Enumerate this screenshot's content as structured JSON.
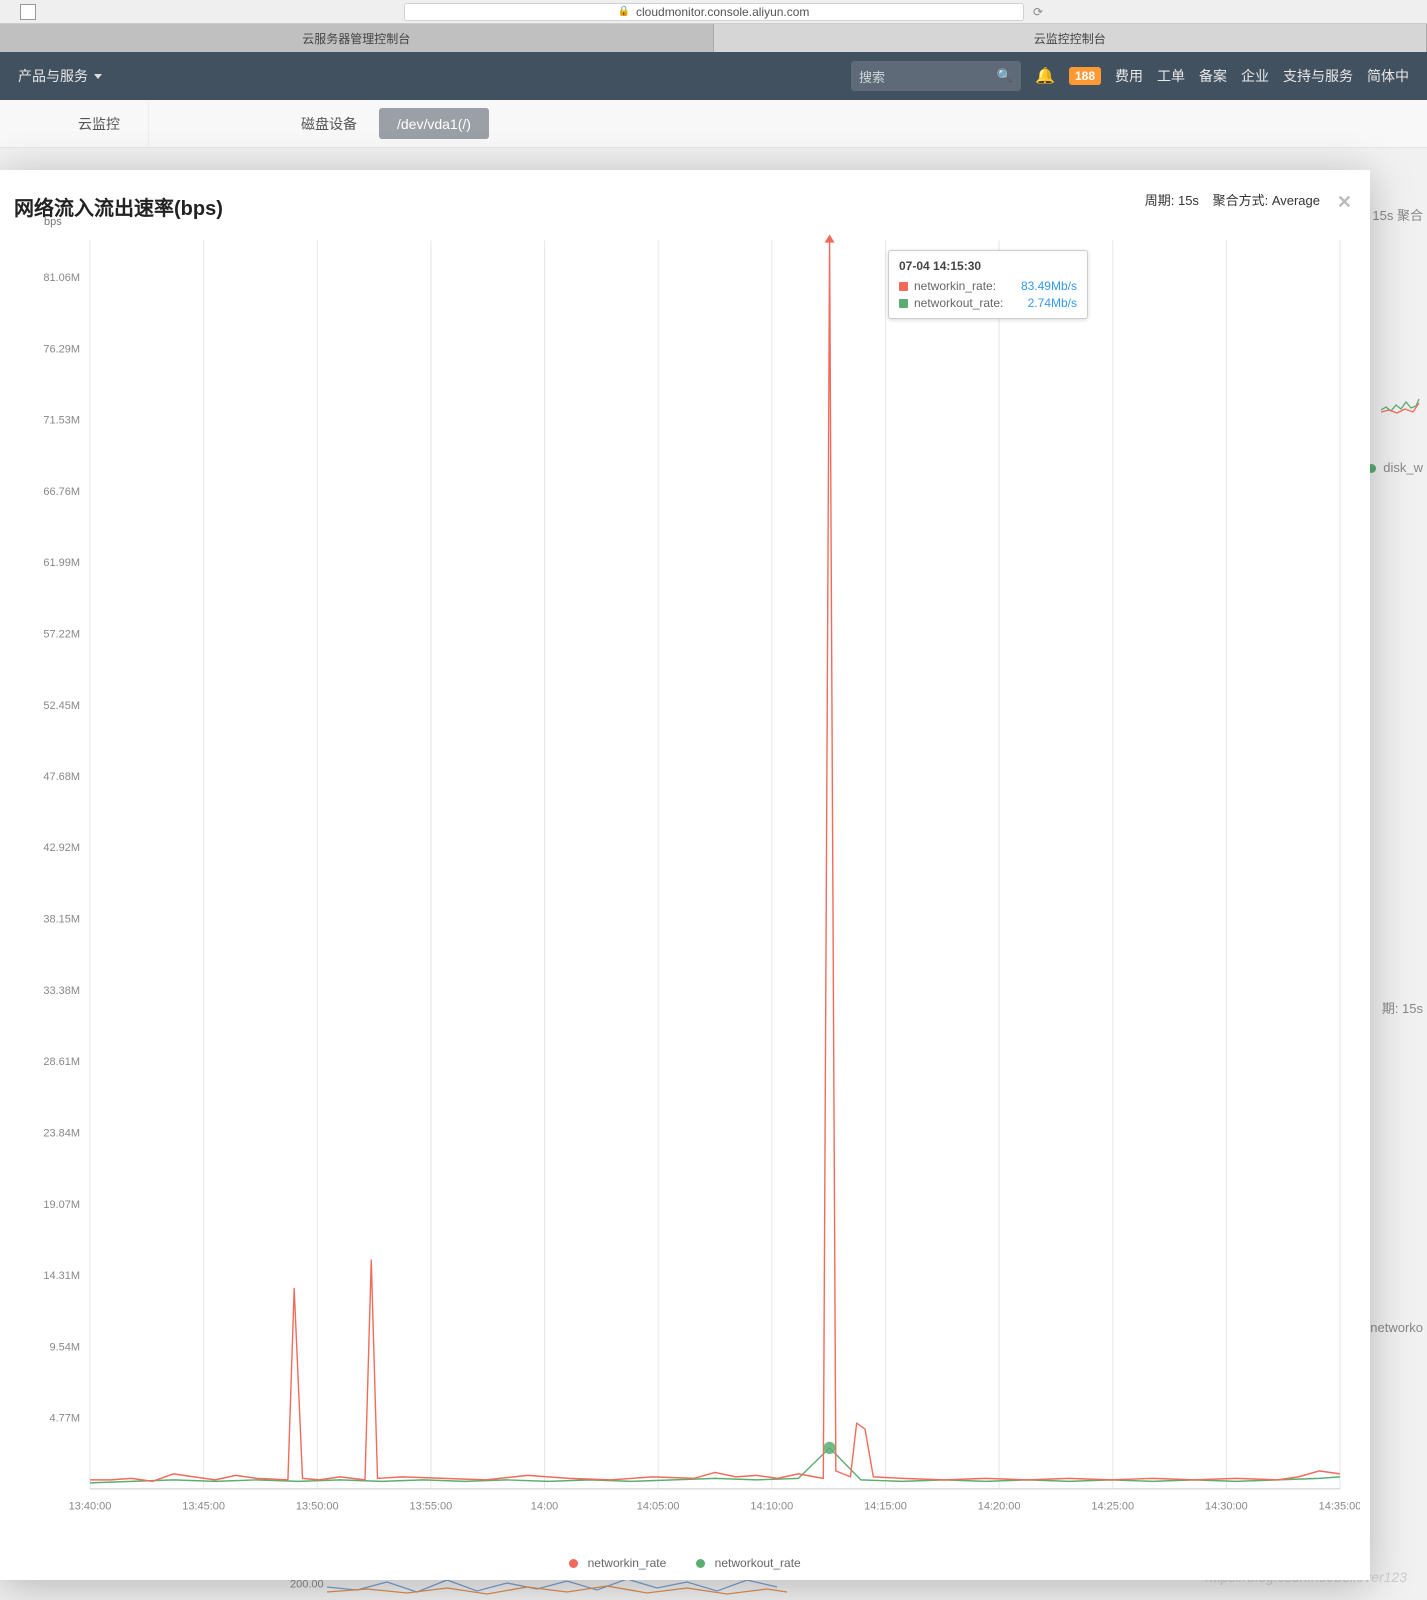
{
  "browser": {
    "url_display": "cloudmonitor.console.aliyun.com",
    "tabs": [
      "云服务器管理控制台",
      "云监控控制台"
    ],
    "active_tab": 1
  },
  "nav": {
    "product_menu": "产品与服务",
    "search_placeholder": "搜索",
    "notif_count": "188",
    "links": [
      "费用",
      "工单",
      "备案",
      "企业",
      "支持与服务",
      "简体中"
    ]
  },
  "page_tabs": {
    "left": "云监控",
    "center": "磁盘设备",
    "selected": "/dev/vda1(/)"
  },
  "chart": {
    "title": "网络流入流出速率(bps)",
    "unit": "bps",
    "meta_period_label": "周期:",
    "meta_period_value": "15s",
    "meta_agg_label": "聚合方式:",
    "meta_agg_value": "Average",
    "tooltip": {
      "time": "07-04 14:15:30",
      "rows": [
        {
          "color": "#f26b5a",
          "label": "networkin_rate:",
          "value": "83.49Mb/s"
        },
        {
          "color": "#5aae72",
          "label": "networkout_rate:",
          "value": "2.74Mb/s"
        }
      ]
    },
    "legend": [
      {
        "color": "#f26b5a",
        "label": "networkin_rate"
      },
      {
        "color": "#5aae72",
        "label": "networkout_rate"
      }
    ],
    "y_axis": {
      "ticks": [
        "81.06M",
        "76.29M",
        "71.53M",
        "66.76M",
        "61.99M",
        "57.22M",
        "52.45M",
        "47.68M",
        "42.92M",
        "38.15M",
        "33.38M",
        "28.61M",
        "23.84M",
        "19.07M",
        "14.31M",
        "9.54M",
        "4.77M"
      ],
      "min": 0,
      "max": 83.5
    },
    "x_axis": {
      "ticks": [
        "13:40:00",
        "13:45:00",
        "13:50:00",
        "13:55:00",
        "14:00",
        "14:05:00",
        "14:10:00",
        "14:15:00",
        "14:20:00",
        "14:25:00",
        "14:30:00",
        "14:35:00"
      ],
      "min": 0,
      "max": 60
    },
    "series": {
      "networkin": {
        "color": "#f26b5a",
        "data": [
          [
            0,
            0.6
          ],
          [
            1,
            0.6
          ],
          [
            2,
            0.7
          ],
          [
            3,
            0.5
          ],
          [
            4,
            1.0
          ],
          [
            5,
            0.8
          ],
          [
            6,
            0.6
          ],
          [
            7,
            0.9
          ],
          [
            8,
            0.7
          ],
          [
            9.5,
            0.6
          ],
          [
            9.8,
            13.4
          ],
          [
            10.2,
            0.7
          ],
          [
            11,
            0.6
          ],
          [
            12,
            0.8
          ],
          [
            13.2,
            0.6
          ],
          [
            13.5,
            15.3
          ],
          [
            13.8,
            0.7
          ],
          [
            15,
            0.8
          ],
          [
            17,
            0.7
          ],
          [
            19,
            0.6
          ],
          [
            21,
            0.9
          ],
          [
            23,
            0.7
          ],
          [
            25,
            0.6
          ],
          [
            27,
            0.8
          ],
          [
            29,
            0.7
          ],
          [
            30,
            1.1
          ],
          [
            31,
            0.8
          ],
          [
            32,
            0.9
          ],
          [
            33,
            0.7
          ],
          [
            34,
            1.0
          ],
          [
            35.2,
            0.7
          ],
          [
            35.5,
            83.49
          ],
          [
            35.8,
            1.2
          ],
          [
            36.5,
            0.8
          ],
          [
            36.8,
            4.4
          ],
          [
            37.2,
            4.0
          ],
          [
            37.6,
            0.8
          ],
          [
            39,
            0.7
          ],
          [
            41,
            0.6
          ],
          [
            43,
            0.7
          ],
          [
            45,
            0.6
          ],
          [
            47,
            0.7
          ],
          [
            49,
            0.6
          ],
          [
            51,
            0.7
          ],
          [
            53,
            0.6
          ],
          [
            55,
            0.7
          ],
          [
            57,
            0.6
          ],
          [
            58,
            0.8
          ],
          [
            59,
            1.2
          ],
          [
            60,
            1.0
          ]
        ]
      },
      "networkout": {
        "color": "#5aae72",
        "data": [
          [
            0,
            0.4
          ],
          [
            2,
            0.5
          ],
          [
            4,
            0.6
          ],
          [
            6,
            0.5
          ],
          [
            8,
            0.6
          ],
          [
            10,
            0.5
          ],
          [
            12,
            0.6
          ],
          [
            14,
            0.5
          ],
          [
            16,
            0.6
          ],
          [
            18,
            0.5
          ],
          [
            20,
            0.6
          ],
          [
            22,
            0.5
          ],
          [
            24,
            0.6
          ],
          [
            26,
            0.5
          ],
          [
            28,
            0.6
          ],
          [
            30,
            0.7
          ],
          [
            32,
            0.6
          ],
          [
            34,
            0.7
          ],
          [
            35.5,
            2.74
          ],
          [
            37,
            0.6
          ],
          [
            39,
            0.5
          ],
          [
            41,
            0.6
          ],
          [
            43,
            0.5
          ],
          [
            45,
            0.6
          ],
          [
            47,
            0.5
          ],
          [
            49,
            0.6
          ],
          [
            51,
            0.5
          ],
          [
            53,
            0.6
          ],
          [
            55,
            0.5
          ],
          [
            57,
            0.6
          ],
          [
            59,
            0.7
          ],
          [
            60,
            0.8
          ]
        ]
      }
    },
    "plot": {
      "background": "#ffffff",
      "grid_color": "#e6e6e6",
      "axis_text_color": "#888888",
      "axis_fontsize": 11,
      "line_width": 1.4,
      "marker_radius": 6,
      "marker_x": 35.5
    }
  },
  "bg_fragments": {
    "right1": "15s  聚合",
    "right2": "disk_w",
    "right3": "期: 15s",
    "right4": "networko",
    "mini_label": "200.00"
  },
  "watermark": "https://blog.csdn.net/believer123"
}
